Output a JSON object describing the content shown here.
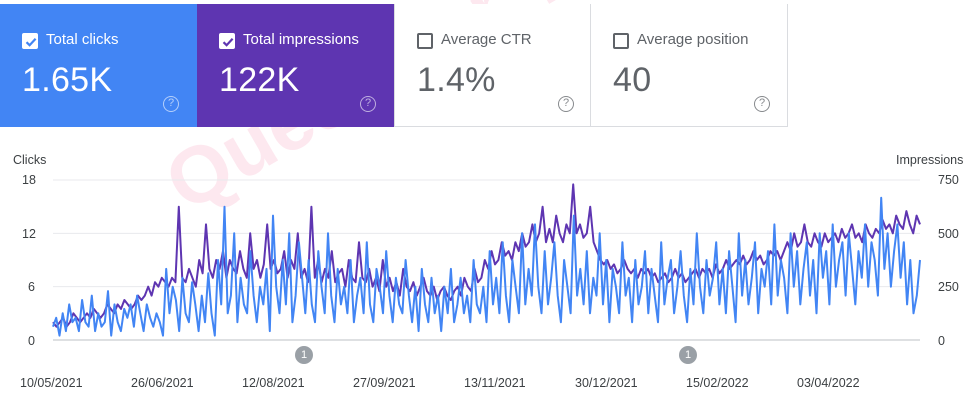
{
  "metrics": [
    {
      "label": "Total clicks",
      "value": "1.65K",
      "checked": true,
      "color": "#4285f4"
    },
    {
      "label": "Total impressions",
      "value": "122K",
      "checked": true,
      "color": "#5e35b1"
    },
    {
      "label": "Average CTR",
      "value": "1.4%",
      "checked": false,
      "color": "#ffffff"
    },
    {
      "label": "Average position",
      "value": "40",
      "checked": false,
      "color": "#ffffff"
    }
  ],
  "help_glyph": "?",
  "chart_data": {
    "type": "line",
    "left_axis_title": "Clicks",
    "right_axis_title": "Impressions",
    "left_ticks": [
      "18",
      "12",
      "6",
      "0"
    ],
    "right_ticks": [
      "750",
      "500",
      "250",
      "0"
    ],
    "ylim_left": [
      0,
      18
    ],
    "ylim_right": [
      0,
      750
    ],
    "x_ticks": [
      "10/05/2021",
      "26/06/2021",
      "12/08/2021",
      "27/09/2021",
      "13/11/2021",
      "30/12/2021",
      "15/02/2022",
      "03/04/2022"
    ],
    "annotation_markers": [
      "1",
      "1"
    ],
    "series": [
      {
        "color": "#4285f4",
        "axis": "left",
        "values": [
          1.5,
          2.5,
          0.5,
          3,
          1,
          4,
          2,
          2.5,
          1,
          4.5,
          2,
          1.5,
          5,
          1,
          3,
          1.5,
          2,
          5.5,
          0.5,
          4,
          2,
          1,
          3.5,
          2.5,
          4,
          1.5,
          5,
          3,
          1,
          4,
          2.5,
          1.5,
          3,
          2,
          0.5,
          8,
          3,
          6,
          4.5,
          1,
          7,
          3,
          2,
          6.5,
          4,
          1,
          5,
          2,
          7.5,
          3,
          0.5,
          9,
          4,
          15,
          3,
          5,
          12,
          2,
          7,
          4,
          3,
          10,
          5,
          2,
          6,
          4,
          8,
          1,
          14,
          6,
          3,
          9,
          4,
          12,
          2,
          5,
          11,
          7,
          3,
          9,
          4,
          2,
          10,
          6,
          3,
          12,
          5,
          2,
          8,
          4,
          6,
          3,
          9,
          2,
          5,
          7,
          3,
          11,
          4,
          2,
          8,
          6,
          3,
          10,
          5,
          2,
          7,
          4,
          3,
          9,
          5,
          2,
          6,
          1,
          8,
          4,
          2,
          7,
          3,
          5,
          1,
          6,
          3,
          8,
          2,
          4,
          7,
          3,
          5,
          2,
          9,
          4,
          3,
          6,
          2,
          10,
          4,
          7,
          3,
          11,
          5,
          2,
          9,
          6,
          3,
          12,
          4,
          8,
          5,
          13,
          6,
          3,
          10,
          4,
          7,
          11,
          5,
          2,
          9,
          6,
          3,
          14,
          5,
          8,
          4,
          10,
          3,
          7,
          5,
          12,
          4,
          9,
          2,
          8,
          6,
          3,
          11,
          5,
          7,
          2,
          9,
          4,
          6,
          10,
          3,
          8,
          5,
          2,
          11,
          4,
          7,
          9,
          3,
          6,
          10,
          5,
          2,
          8,
          4,
          12,
          6,
          3,
          9,
          5,
          7,
          11,
          4,
          8,
          3,
          10,
          6,
          2,
          12,
          5,
          9,
          4,
          7,
          11,
          3,
          8,
          6,
          10,
          4,
          13,
          5,
          9,
          7,
          3,
          12,
          6,
          10,
          4,
          8,
          11,
          5,
          9,
          3,
          12,
          7,
          10,
          4,
          13,
          6,
          9,
          11,
          5,
          12,
          8,
          4,
          10,
          7,
          13,
          6,
          11,
          9,
          5,
          16,
          8,
          12,
          6,
          10,
          13,
          7,
          11,
          4,
          9,
          3,
          5,
          9
        ]
      },
      {
        "color": "#5e35b1",
        "axis": "left",
        "values": [
          2,
          1.5,
          2,
          2.5,
          1.5,
          2,
          3,
          2.5,
          2,
          2.5,
          3,
          2.5,
          3.5,
          3,
          2.5,
          3,
          4,
          3.5,
          3,
          4,
          3.5,
          4.5,
          4,
          3.5,
          4,
          5,
          4.5,
          5,
          6,
          5,
          6.5,
          6,
          7,
          6.5,
          6,
          7,
          6.5,
          15,
          7,
          6.5,
          8,
          7,
          6,
          9,
          7.5,
          13,
          8,
          7,
          9,
          8,
          10,
          7,
          9,
          8,
          7.5,
          10,
          8,
          7,
          12,
          8,
          9,
          7,
          8.5,
          13,
          8,
          9,
          7.5,
          8,
          10,
          7,
          9,
          8,
          12,
          7,
          8,
          6.5,
          15,
          7,
          9,
          6.5,
          8,
          7,
          10,
          6.5,
          7.5,
          8,
          6,
          9,
          7,
          6.5,
          11,
          7,
          6.5,
          8,
          6,
          7,
          5.5,
          9,
          6,
          7,
          5.5,
          6.5,
          5,
          8,
          6,
          5.5,
          6.5,
          5,
          6,
          7,
          5.5,
          5,
          6,
          4.5,
          5.5,
          6,
          5,
          4.5,
          5.5,
          6,
          5,
          7,
          6,
          5.5,
          8,
          6.5,
          7,
          9,
          8,
          10,
          8.5,
          9,
          11,
          9.5,
          10,
          9,
          11,
          10,
          12,
          10.5,
          11,
          13,
          11,
          12,
          15,
          11,
          12.5,
          11,
          14,
          12,
          11,
          13,
          12,
          17.5,
          12,
          13,
          11.5,
          12,
          15,
          11,
          10,
          9,
          8.5,
          9,
          8,
          8.5,
          7.5,
          8,
          9,
          8,
          7.5,
          8,
          7,
          8,
          7.5,
          8,
          7,
          7.5,
          6.5,
          7,
          7.5,
          6.5,
          7,
          8,
          7,
          7.5,
          6.5,
          7,
          7.5,
          8,
          7,
          8,
          7.5,
          8,
          7,
          8.5,
          7.5,
          8,
          9,
          8,
          8.5,
          9,
          8.5,
          9.5,
          8.5,
          9,
          10,
          9,
          9.5,
          8.5,
          9,
          10,
          9.5,
          10,
          9,
          10,
          11,
          10,
          12,
          10.5,
          11,
          13,
          11,
          10.5,
          12,
          11,
          10.5,
          12,
          11,
          11.5,
          12,
          11,
          12.5,
          11.5,
          12,
          13,
          11.5,
          12,
          11,
          13,
          12,
          11.5,
          12.5,
          12,
          13.5,
          12.5,
          13,
          12,
          14,
          13,
          12.5,
          14.5,
          13,
          12,
          14,
          13
        ]
      }
    ]
  }
}
